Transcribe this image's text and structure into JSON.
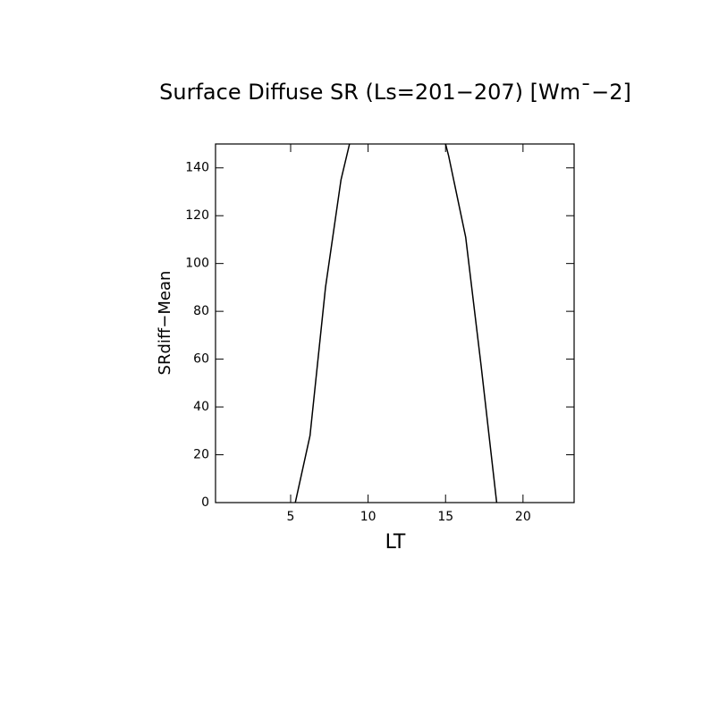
{
  "chart_data": {
    "type": "line",
    "title": "Surface Diffuse SR (Ls=201−207) [Wm¯−2]",
    "x_label": "LT",
    "y_label": "SRdiff−Mean",
    "x": [
      5.3,
      6.25,
      7.25,
      8.25,
      8.8,
      12,
      15.0,
      15.2,
      16.3,
      17.3,
      18.3
    ],
    "series": [
      {
        "color": "#000000",
        "values": [
          0,
          28,
          90,
          135,
          150,
          null,
          150,
          145,
          111,
          57,
          0
        ]
      }
    ],
    "xlim": [
      0.15,
      23.3
    ],
    "xticks": [
      5,
      10,
      15,
      20
    ],
    "ylim": [
      0,
      150
    ],
    "yticks": [
      0,
      20,
      40,
      60,
      80,
      100,
      120,
      140
    ]
  }
}
